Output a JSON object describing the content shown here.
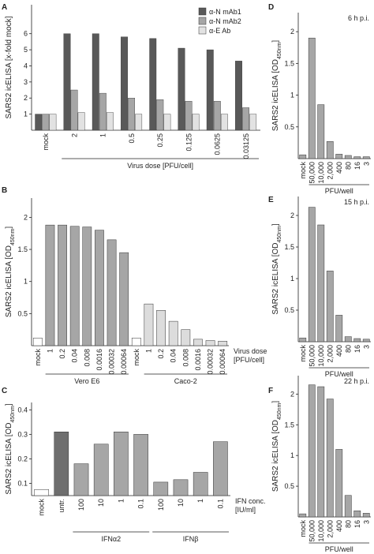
{
  "chart_data": [
    {
      "type": "bar",
      "panel": "A",
      "ylabel": [
        "SARS2 icELISA [x-fold mock]"
      ],
      "ylim": [
        0,
        7.8
      ],
      "yticks": [
        1,
        2,
        3,
        4,
        5,
        6
      ],
      "groups": [
        {
          "categories": [
            "mock"
          ]
        },
        {
          "label": "Virus dose [PFU/cell]",
          "categories": [
            "2",
            "1",
            "0.5",
            "0.25",
            "0.125",
            "0.0625",
            "0.03125"
          ]
        }
      ],
      "series": [
        {
          "name": "α-N mAb1",
          "color": "#595959",
          "values": [
            1.0,
            6.0,
            6.0,
            5.8,
            5.7,
            5.1,
            5.0,
            4.3
          ]
        },
        {
          "name": "α-N mAb2",
          "color": "#a6a6a6",
          "values": [
            1.0,
            2.5,
            2.3,
            2.0,
            1.9,
            1.8,
            1.8,
            1.4
          ]
        },
        {
          "name": "α-E Ab",
          "color": "#e2e2e2",
          "values": [
            1.0,
            1.1,
            1.1,
            1.0,
            1.0,
            1.0,
            1.0,
            1.0
          ]
        }
      ]
    },
    {
      "type": "bar",
      "panel": "B",
      "ylabel": [
        "SARS2 icELISA [OD",
        "450nm",
        "]"
      ],
      "ylim": [
        0,
        2.3
      ],
      "yticks": [
        0.5,
        1,
        1.5,
        2
      ],
      "annotation": [
        "Virus dose",
        "[PFU/cell]"
      ],
      "groups": [
        {
          "categories": [
            "mock"
          ],
          "values": [
            0.12
          ],
          "color": "#ffffff"
        },
        {
          "label": "Vero E6",
          "categories": [
            "1",
            "0.2",
            "0.04",
            "0.008",
            "0.0016",
            "0.00032",
            "0.00064"
          ],
          "values": [
            1.88,
            1.88,
            1.86,
            1.85,
            1.8,
            1.65,
            1.45
          ],
          "color": "#a6a6a6"
        },
        {
          "categories": [
            "mock"
          ],
          "values": [
            0.12
          ],
          "color": "#ffffff"
        },
        {
          "label": "Caco-2",
          "categories": [
            "1",
            "0.2",
            "0.04",
            "0.008",
            "0.0016",
            "0.00032",
            "0.00064"
          ],
          "values": [
            0.65,
            0.55,
            0.38,
            0.25,
            0.1,
            0.08,
            0.07
          ],
          "color": "#dcdcdc"
        }
      ]
    },
    {
      "type": "bar",
      "panel": "C",
      "ylabel": [
        "SARS2 icELISA [OD",
        "450nm",
        "]"
      ],
      "ylim": [
        0.05,
        0.43
      ],
      "yticks": [
        0.1,
        0.2,
        0.3,
        0.4
      ],
      "annotation": [
        "IFN conc.",
        "[IU/ml]"
      ],
      "groups": [
        {
          "categories": [
            "mock"
          ],
          "values": [
            0.075
          ],
          "color": "#ffffff"
        },
        {
          "categories": [
            "untr."
          ],
          "values": [
            0.31
          ],
          "color": "#6e6e6e"
        },
        {
          "label": "IFNα2",
          "categories": [
            "100",
            "10",
            "1",
            "0.1"
          ],
          "values": [
            0.18,
            0.26,
            0.31,
            0.3
          ],
          "color": "#a6a6a6"
        },
        {
          "label": "IFNβ",
          "categories": [
            "100",
            "10",
            "1",
            "0.1"
          ],
          "values": [
            0.105,
            0.115,
            0.145,
            0.27
          ],
          "color": "#a6a6a6"
        }
      ]
    },
    {
      "type": "bar",
      "panel": "D",
      "note": "6 h p.i.",
      "ylabel": [
        "SARS2 icELISA [OD",
        "450nm",
        "]"
      ],
      "ylim": [
        0,
        2.3
      ],
      "yticks": [
        0.5,
        1,
        1.5,
        2
      ],
      "groups": [
        {
          "categories": [
            "mock"
          ],
          "values": [
            0.06
          ],
          "color": "#a6a6a6"
        },
        {
          "label": "PFU/well",
          "categories": [
            "50,000",
            "10,000",
            "2,000",
            "400",
            "80",
            "16",
            "3"
          ],
          "values": [
            1.9,
            0.85,
            0.27,
            0.07,
            0.05,
            0.03,
            0.03
          ],
          "color": "#a6a6a6"
        }
      ]
    },
    {
      "type": "bar",
      "panel": "E",
      "note": "15 h p.i.",
      "ylabel": [
        "SARS2 icELISA [OD",
        "450nm",
        "]"
      ],
      "ylim": [
        0,
        2.3
      ],
      "yticks": [
        0.5,
        1,
        1.5,
        2
      ],
      "groups": [
        {
          "categories": [
            "mock"
          ],
          "values": [
            0.06
          ],
          "color": "#a6a6a6"
        },
        {
          "label": "PFU/well",
          "categories": [
            "50,000",
            "10,000",
            "2,000",
            "400",
            "80",
            "16",
            "3"
          ],
          "values": [
            2.13,
            1.85,
            1.12,
            0.42,
            0.08,
            0.05,
            0.04
          ],
          "color": "#a6a6a6"
        }
      ]
    },
    {
      "type": "bar",
      "panel": "F",
      "note": "22 h p.i.",
      "ylabel": [
        "SARS2 icELISA [OD",
        "450nm",
        "]"
      ],
      "ylim": [
        0,
        2.3
      ],
      "yticks": [
        0.5,
        1,
        1.5,
        2
      ],
      "groups": [
        {
          "categories": [
            "mock"
          ],
          "values": [
            0.05
          ],
          "color": "#a6a6a6"
        },
        {
          "label": "PFU/well",
          "categories": [
            "50,000",
            "10,000",
            "2,000",
            "400",
            "80",
            "16",
            "3"
          ],
          "values": [
            2.15,
            2.12,
            1.92,
            1.1,
            0.35,
            0.1,
            0.06
          ],
          "color": "#a6a6a6"
        }
      ]
    }
  ]
}
